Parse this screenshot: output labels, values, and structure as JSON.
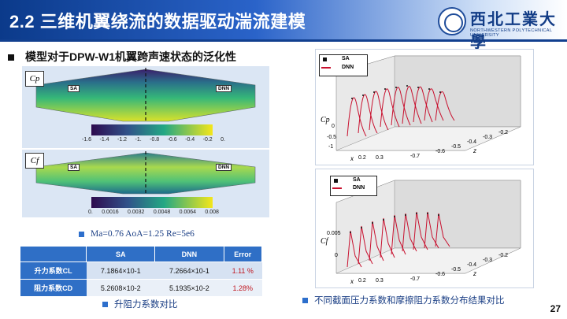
{
  "header": {
    "title": "2.2 三维机翼绕流的数据驱动湍流建模",
    "university_cn": "西北工業大學",
    "university_en": "NORTHWESTERN POLYTECHNICAL UNIVERSITY"
  },
  "subtitle": "模型对于DPW-W1机翼跨声速状态的泛化性",
  "left_panel": {
    "cp_label": "Cp",
    "cf_label": "Cf",
    "tag_sa": "SA",
    "tag_dnn": "DNN",
    "cp_ticks": [
      "-1.6",
      "-1.4",
      "-1.2",
      "-1.",
      "-0.8",
      "-0.6",
      "-0.4",
      "-0.2",
      "0."
    ],
    "cf_ticks": [
      "0.",
      "0.0016",
      "0.0032",
      "0.0048",
      "0.0064",
      "0.008"
    ]
  },
  "condition": "Ma=0.76 AoA=1.25 Re=5e6",
  "table": {
    "headers": [
      "",
      "SA",
      "DNN",
      "Error"
    ],
    "rows": [
      {
        "label": "升力系数CL",
        "sa": "7.1864×10-1",
        "dnn": "7.2664×10-1",
        "err": "1.11 %"
      },
      {
        "label": "阻力系数CD",
        "sa": "5.2608×10-2",
        "dnn": "5.1935×10-2",
        "err": "1.28%"
      }
    ]
  },
  "caption_left": "升阻力系数对比",
  "caption_right": "不同截面压力系数和摩擦阻力系数分布结果对比",
  "right_top": {
    "legend": [
      "SA",
      "DNN"
    ],
    "ylabel": "Cp",
    "yticks": [
      "0",
      "-0.5",
      "-1"
    ],
    "xticks": [
      "0.3",
      "0.2",
      "0.1",
      "0"
    ],
    "zticks": [
      "-0.7",
      "-0.6",
      "-0.5",
      "-0.4",
      "-0.3",
      "-0.2"
    ],
    "xlabel": "x",
    "zlabel": "z"
  },
  "right_bottom": {
    "legend": [
      "SA",
      "DNN"
    ],
    "ylabel": "Cf",
    "yticks": [
      "0.005",
      "0"
    ],
    "xticks": [
      "0.3",
      "0.2",
      "0.1",
      "0"
    ],
    "zticks": [
      "-0.7",
      "-0.6",
      "-0.5",
      "-0.4",
      "-0.3",
      "-0.2"
    ],
    "xlabel": "x",
    "zlabel": "z"
  },
  "page_number": "27",
  "colors": {
    "accent": "#2f6fc6",
    "header": "#0b3a8a",
    "error": "#c0161f"
  }
}
